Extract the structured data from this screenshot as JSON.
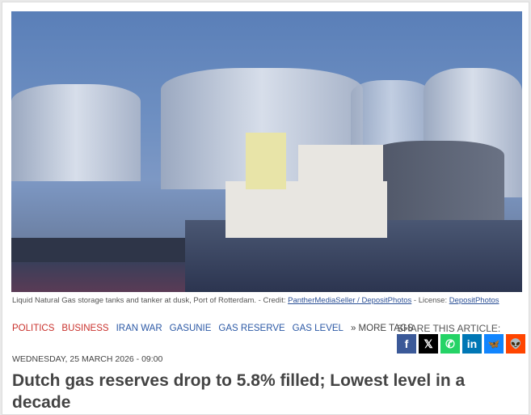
{
  "image": {
    "caption": "Liquid Natural Gas storage tanks and tanker at dusk, Port of Rotterdam. - Credit: ",
    "credit_link": "PantherMediaSeller / DepositPhotos",
    "license_prefix": " - License: ",
    "license_link": "DepositPhotos"
  },
  "tags": [
    {
      "label": "POLITICS",
      "color": "#c9312c"
    },
    {
      "label": "BUSINESS",
      "color": "#c9312c"
    },
    {
      "label": "IRAN WAR",
      "color": "#2b58a5"
    },
    {
      "label": "GASUNIE",
      "color": "#2b58a5"
    },
    {
      "label": "GAS RESERVE",
      "color": "#2b58a5"
    },
    {
      "label": "GAS LEVEL",
      "color": "#2b58a5"
    }
  ],
  "more_tags": "» MORE TAGS",
  "share": {
    "label": "SHARE THIS ARTICLE:",
    "buttons": [
      {
        "icon": "facebook-icon",
        "glyph": "f",
        "color": "#3b5998"
      },
      {
        "icon": "x-icon",
        "glyph": "𝕏",
        "color": "#000000"
      },
      {
        "icon": "whatsapp-icon",
        "glyph": "✆",
        "color": "#25d366"
      },
      {
        "icon": "linkedin-icon",
        "glyph": "in",
        "color": "#0077b5"
      },
      {
        "icon": "bluesky-icon",
        "glyph": "🦋",
        "color": "#1185fe"
      },
      {
        "icon": "reddit-icon",
        "glyph": "👽",
        "color": "#ff4500"
      }
    ]
  },
  "article": {
    "date": "WEDNESDAY, 25 MARCH 2026 - 09:00",
    "title": "Dutch gas reserves drop to 5.8% filled; Lowest level in a decade"
  }
}
